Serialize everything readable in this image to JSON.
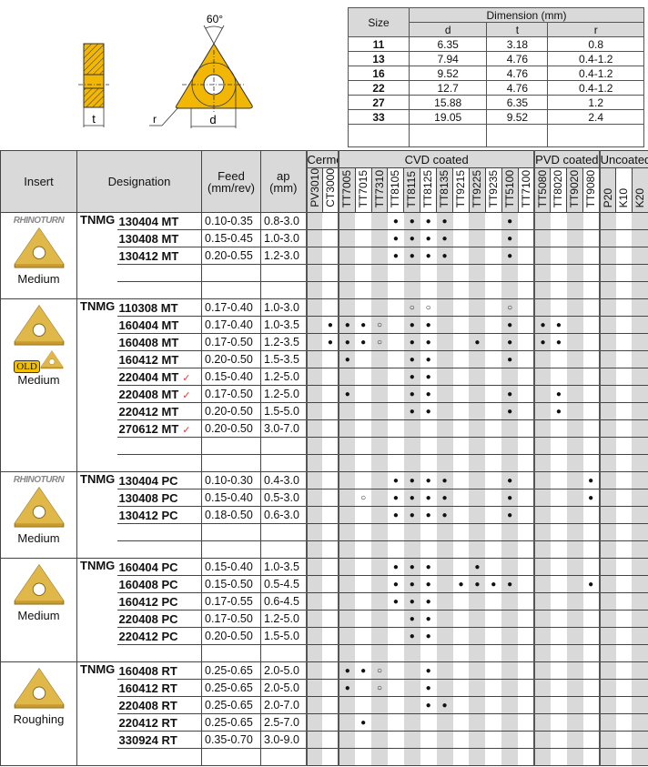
{
  "diagram": {
    "angle_label": "60°",
    "t_label": "t",
    "d_label": "d",
    "r_label": "r",
    "insert_color": "#f2b705"
  },
  "dimension_table": {
    "size_header": "Size",
    "dimension_header": "Dimension (mm)",
    "cols": [
      "d",
      "t",
      "r"
    ],
    "rows": [
      [
        "11",
        "6.35",
        "3.18",
        "0.8"
      ],
      [
        "13",
        "7.94",
        "4.76",
        "0.4-1.2"
      ],
      [
        "16",
        "9.52",
        "4.76",
        "0.4-1.2"
      ],
      [
        "22",
        "12.7",
        "4.76",
        "0.4-1.2"
      ],
      [
        "27",
        "15.88",
        "6.35",
        "1.2"
      ],
      [
        "33",
        "19.05",
        "9.52",
        "2.4"
      ]
    ]
  },
  "main": {
    "headers": {
      "insert": "Insert",
      "designation": "Designation",
      "feed": "Feed",
      "feed_unit": "(mm/rev)",
      "ap": "ap",
      "ap_unit": "(mm)"
    },
    "groups": [
      {
        "label": "Cermet",
        "grades": [
          "PV3010",
          "CT3000"
        ]
      },
      {
        "label": "CVD coated",
        "grades": [
          "TT7005",
          "TT7015",
          "TT7310",
          "TT8105",
          "TT8115",
          "TT8125",
          "TT8135",
          "TT9215",
          "TT9225",
          "TT9235",
          "TT5100",
          "TT7100"
        ]
      },
      {
        "label": "PVD coated",
        "grades": [
          "TT5080",
          "TT8020",
          "TT9020",
          "TT9080"
        ]
      },
      {
        "label": "Uncoated",
        "grades": [
          "P20",
          "K10",
          "K20"
        ]
      }
    ],
    "legend_symbols": {
      "filled": "●",
      "open": "○",
      "check": "✓"
    },
    "sections": [
      {
        "logo": "RHINOTURN",
        "label": "Medium",
        "prefix": "TNMG",
        "rows": [
          {
            "code": "130404 MT",
            "feed": "0.10-0.35",
            "ap": "0.8-3.0",
            "grades": {
              "TT8105": "●",
              "TT8115": "●",
              "TT8125": "●",
              "TT8135": "●",
              "TT5100": "●"
            }
          },
          {
            "code": "130408 MT",
            "feed": "0.15-0.45",
            "ap": "1.0-3.0",
            "grades": {
              "TT8105": "●",
              "TT8115": "●",
              "TT8125": "●",
              "TT8135": "●",
              "TT5100": "●"
            }
          },
          {
            "code": "130412 MT",
            "feed": "0.20-0.55",
            "ap": "1.2-3.0",
            "grades": {
              "TT8105": "●",
              "TT8115": "●",
              "TT8125": "●",
              "TT8135": "●",
              "TT5100": "●"
            }
          }
        ]
      },
      {
        "badge": "OLD",
        "label": "Medium",
        "prefix": "TNMG",
        "rows": [
          {
            "code": "110308 MT",
            "feed": "0.17-0.40",
            "ap": "1.0-3.0",
            "grades": {
              "TT8115": "○",
              "TT8125": "○",
              "TT5100": "○"
            }
          },
          {
            "code": "160404 MT",
            "feed": "0.17-0.40",
            "ap": "1.0-3.5",
            "grades": {
              "CT3000": "●",
              "TT7005": "●",
              "TT7015": "●",
              "TT7310": "○",
              "TT8115": "●",
              "TT8125": "●",
              "TT5100": "●",
              "TT5080": "●",
              "TT8020": "●"
            }
          },
          {
            "code": "160408 MT",
            "feed": "0.17-0.50",
            "ap": "1.2-3.5",
            "grades": {
              "CT3000": "●",
              "TT7005": "●",
              "TT7015": "●",
              "TT7310": "○",
              "TT8115": "●",
              "TT8125": "●",
              "TT9225": "●",
              "TT5100": "●",
              "TT5080": "●",
              "TT8020": "●"
            }
          },
          {
            "code": "160412 MT",
            "feed": "0.20-0.50",
            "ap": "1.5-3.5",
            "grades": {
              "TT7005": "●",
              "TT8115": "●",
              "TT8125": "●",
              "TT5100": "●"
            }
          },
          {
            "code": "220404 MT",
            "check": true,
            "feed": "0.15-0.40",
            "ap": "1.2-5.0",
            "grades": {
              "TT8115": "●",
              "TT8125": "●"
            }
          },
          {
            "code": "220408 MT",
            "check": true,
            "feed": "0.17-0.50",
            "ap": "1.2-5.0",
            "grades": {
              "TT7005": "●",
              "TT8115": "●",
              "TT8125": "●",
              "TT5100": "●",
              "TT8020": "●"
            }
          },
          {
            "code": "220412 MT",
            "feed": "0.20-0.50",
            "ap": "1.5-5.0",
            "grades": {
              "TT8115": "●",
              "TT8125": "●",
              "TT5100": "●",
              "TT8020": "●"
            }
          },
          {
            "code": "270612 MT",
            "check": true,
            "feed": "0.20-0.50",
            "ap": "3.0-7.0",
            "grades": {}
          }
        ]
      },
      {
        "logo": "RHINOTURN",
        "label": "Medium",
        "prefix": "TNMG",
        "rows": [
          {
            "code": "130404 PC",
            "feed": "0.10-0.30",
            "ap": "0.4-3.0",
            "grades": {
              "TT8105": "●",
              "TT8115": "●",
              "TT8125": "●",
              "TT8135": "●",
              "TT5100": "●",
              "TT9080": "●"
            }
          },
          {
            "code": "130408 PC",
            "feed": "0.15-0.40",
            "ap": "0.5-3.0",
            "grades": {
              "TT7015": "○",
              "TT8105": "●",
              "TT8115": "●",
              "TT8125": "●",
              "TT8135": "●",
              "TT5100": "●",
              "TT9080": "●"
            }
          },
          {
            "code": "130412 PC",
            "feed": "0.18-0.50",
            "ap": "0.6-3.0",
            "grades": {
              "TT8105": "●",
              "TT8115": "●",
              "TT8125": "●",
              "TT8135": "●",
              "TT5100": "●"
            }
          }
        ]
      },
      {
        "label": "Medium",
        "prefix": "TNMG",
        "rows": [
          {
            "code": "160404 PC",
            "feed": "0.15-0.40",
            "ap": "1.0-3.5",
            "grades": {
              "TT8105": "●",
              "TT8115": "●",
              "TT8125": "●",
              "TT9225": "●"
            }
          },
          {
            "code": "160408 PC",
            "feed": "0.15-0.50",
            "ap": "0.5-4.5",
            "grades": {
              "TT8105": "●",
              "TT8115": "●",
              "TT8125": "●",
              "TT9215": "●",
              "TT9225": "●",
              "TT9235": "●",
              "TT5100": "●",
              "TT9080": "●"
            }
          },
          {
            "code": "160412 PC",
            "feed": "0.17-0.55",
            "ap": "0.6-4.5",
            "grades": {
              "TT8105": "●",
              "TT8115": "●",
              "TT8125": "●"
            }
          },
          {
            "code": "220408 PC",
            "feed": "0.17-0.50",
            "ap": "1.2-5.0",
            "grades": {
              "TT8115": "●",
              "TT8125": "●"
            }
          },
          {
            "code": "220412 PC",
            "feed": "0.20-0.50",
            "ap": "1.5-5.0",
            "grades": {
              "TT8115": "●",
              "TT8125": "●"
            }
          }
        ]
      },
      {
        "label": "Roughing",
        "prefix": "TNMG",
        "rows": [
          {
            "code": "160408 RT",
            "feed": "0.25-0.65",
            "ap": "2.0-5.0",
            "grades": {
              "TT7005": "●",
              "TT7015": "●",
              "TT7310": "○",
              "TT8125": "●"
            }
          },
          {
            "code": "160412 RT",
            "feed": "0.25-0.65",
            "ap": "2.0-5.0",
            "grades": {
              "TT7005": "●",
              "TT7310": "○",
              "TT8125": "●"
            }
          },
          {
            "code": "220408 RT",
            "feed": "0.25-0.65",
            "ap": "2.0-7.0",
            "grades": {
              "TT8125": "●",
              "TT8135": "●"
            }
          },
          {
            "code": "220412 RT",
            "feed": "0.25-0.65",
            "ap": "2.5-7.0",
            "grades": {
              "TT7015": "●"
            }
          },
          {
            "code": "330924 RT",
            "feed": "0.35-0.70",
            "ap": "3.0-9.0",
            "grades": {}
          }
        ]
      }
    ]
  }
}
